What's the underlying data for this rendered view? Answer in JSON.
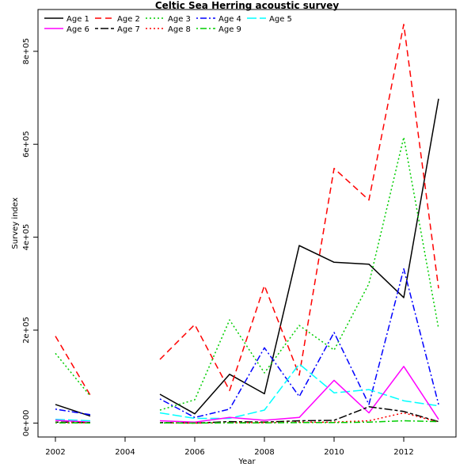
{
  "chart_data": {
    "type": "line",
    "title": "Celtic Sea Herring acoustic survey",
    "xlabel": "Year",
    "ylabel": "Survey index",
    "xlim": [
      2001.5,
      2013.5
    ],
    "ylim": [
      -30000,
      890000
    ],
    "x_ticks": [
      2002,
      2004,
      2006,
      2008,
      2010,
      2012
    ],
    "x_tick_labels": [
      "2002",
      "2004",
      "2006",
      "2008",
      "2010",
      "2012"
    ],
    "y_ticks": [
      0,
      200000,
      400000,
      600000,
      800000
    ],
    "y_tick_labels": [
      "0e+00",
      "2e+05",
      "4e+05",
      "6e+05",
      "8e+05"
    ],
    "grid": false,
    "legend_position": "top-left",
    "x": [
      2002,
      2003,
      2004,
      2005,
      2006,
      2007,
      2008,
      2009,
      2010,
      2011,
      2012,
      2013
    ],
    "series": [
      {
        "name": "Age 1",
        "color": "#000000",
        "dash": "solid",
        "values": [
          40000,
          15000,
          null,
          62000,
          20000,
          105000,
          63000,
          382000,
          346000,
          342000,
          270000,
          698000
        ]
      },
      {
        "name": "Age 2",
        "color": "#ff0000",
        "dash": "dashed",
        "values": [
          187000,
          60000,
          null,
          137000,
          212000,
          70000,
          296000,
          103000,
          548000,
          480000,
          858000,
          290000
        ]
      },
      {
        "name": "Age 3",
        "color": "#00cd00",
        "dash": "dotted",
        "values": [
          150000,
          58000,
          null,
          28000,
          50000,
          222000,
          108000,
          210000,
          157000,
          300000,
          615000,
          203000
        ]
      },
      {
        "name": "Age 4",
        "color": "#0000ff",
        "dash": "dotdash",
        "values": [
          30000,
          18000,
          null,
          52000,
          12000,
          30000,
          162000,
          57000,
          195000,
          40000,
          332000,
          40000
        ]
      },
      {
        "name": "Age 5",
        "color": "#00ffff",
        "dash": "longdash",
        "values": [
          8000,
          5000,
          null,
          22000,
          10000,
          10000,
          28000,
          127000,
          65000,
          72000,
          48000,
          37000
        ]
      },
      {
        "name": "Age 6",
        "color": "#ff00ff",
        "dash": "solid",
        "values": [
          6000,
          2000,
          null,
          5000,
          2000,
          12000,
          6000,
          12000,
          92000,
          22000,
          122000,
          8000
        ]
      },
      {
        "name": "Age 7",
        "color": "#000000",
        "dash": "twodash",
        "values": [
          2000,
          1000,
          null,
          1000,
          0,
          3000,
          2000,
          5000,
          6000,
          35000,
          25000,
          3000
        ]
      },
      {
        "name": "Age 8",
        "color": "#ff0000",
        "dash": "dotted",
        "values": [
          1000,
          500,
          null,
          500,
          0,
          1000,
          1000,
          2000,
          2000,
          5000,
          22000,
          2000
        ]
      },
      {
        "name": "Age 9",
        "color": "#00cd00",
        "dash": "dotdash",
        "values": [
          500,
          300,
          null,
          300,
          0,
          500,
          500,
          1000,
          1000,
          2000,
          5000,
          3000
        ]
      }
    ]
  }
}
